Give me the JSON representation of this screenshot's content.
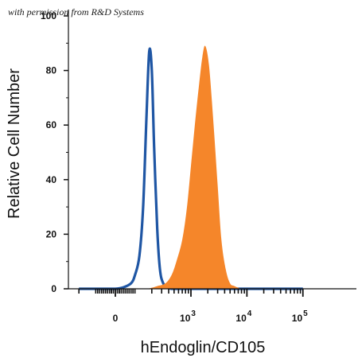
{
  "watermark": "with permission from R&D Systems",
  "chart_data": {
    "type": "area",
    "xlabel": "hEndoglin/CD105",
    "ylabel": "Relative Cell Number",
    "x_scale": "biexponential (0, 10^3, 10^4, 10^5 decades)",
    "ylim": [
      0,
      100
    ],
    "y_ticks": [
      0,
      20,
      40,
      60,
      80,
      100
    ],
    "x_ticks": [
      {
        "value": 0,
        "base": "0",
        "exp": ""
      },
      {
        "value": 1000,
        "base": "10",
        "exp": "3"
      },
      {
        "value": 10000,
        "base": "10",
        "exp": "4"
      },
      {
        "value": 100000,
        "base": "10",
        "exp": "5"
      }
    ],
    "colors": {
      "filled": "#f5862a",
      "outline": "#1f56a4"
    },
    "series": [
      {
        "style": "outline",
        "x": [
          -200,
          -100,
          -50,
          0,
          40,
          80,
          100,
          120,
          140,
          160,
          180,
          200,
          220,
          250,
          280,
          320,
          380,
          450,
          600,
          1000,
          10000,
          100000
        ],
        "y": [
          0,
          0,
          0,
          0,
          0.5,
          2,
          5,
          12,
          30,
          62,
          87,
          80,
          52,
          22,
          7,
          2,
          0.5,
          0,
          0,
          0,
          0,
          0
        ]
      },
      {
        "style": "filled",
        "x": [
          -200,
          0,
          150,
          250,
          350,
          450,
          550,
          700,
          850,
          1000,
          1200,
          1400,
          1600,
          1800,
          2100,
          2500,
          3000,
          3500,
          4200,
          5000,
          6000,
          8000,
          10000,
          100000
        ],
        "y": [
          0,
          0,
          0,
          1,
          2,
          5,
          10,
          18,
          30,
          45,
          62,
          75,
          85,
          89,
          82,
          62,
          38,
          18,
          7,
          2,
          1,
          0,
          0,
          0
        ]
      }
    ]
  }
}
